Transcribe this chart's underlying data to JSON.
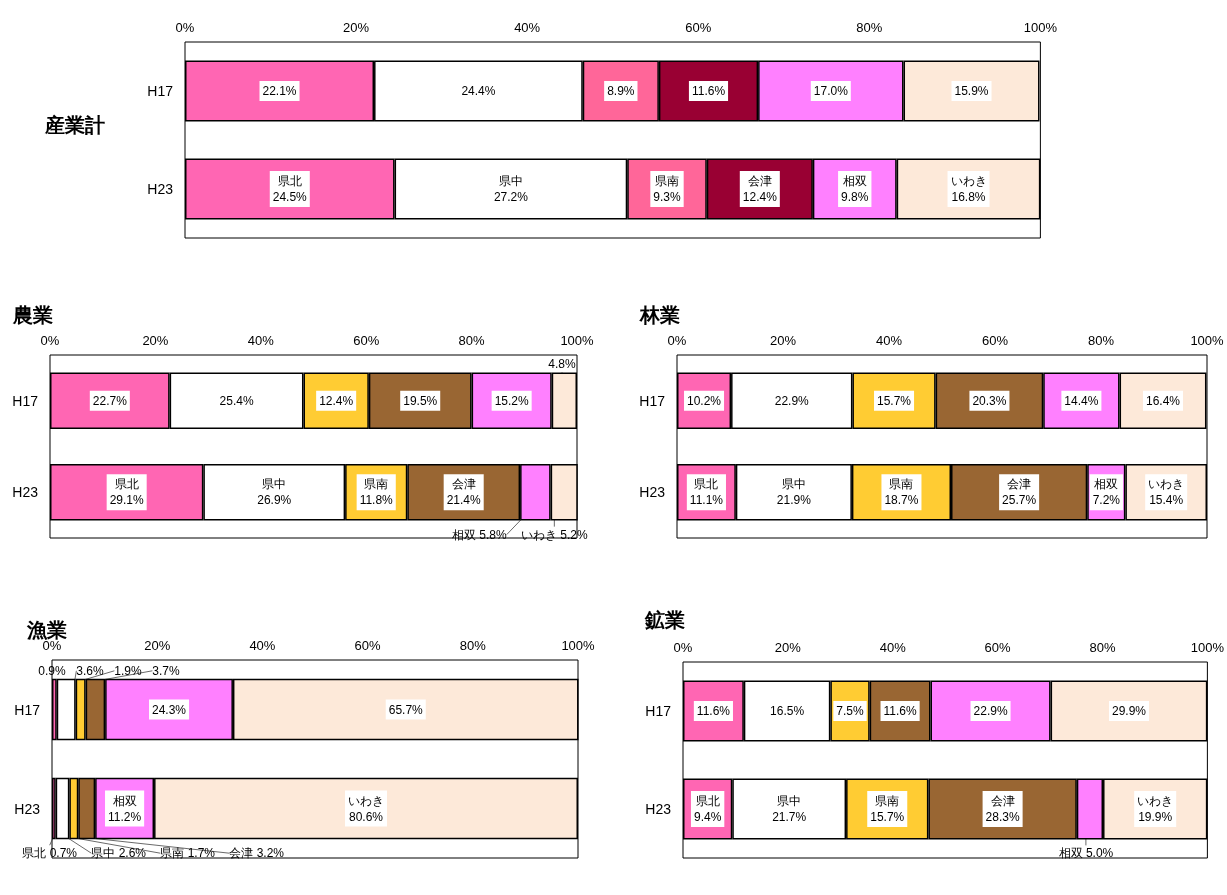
{
  "chart_data": [
    {
      "type": "bar",
      "title": "産業計",
      "orientation": "horizontal",
      "stacked": true,
      "categories": [
        "H17",
        "H23"
      ],
      "xlim": [
        0,
        100
      ],
      "xticks": [
        {
          "value": 0,
          "label": "0%"
        },
        {
          "value": 20,
          "label": "20%"
        },
        {
          "value": 40,
          "label": "40%"
        },
        {
          "value": 60,
          "label": "60%"
        },
        {
          "value": 80,
          "label": "80%"
        },
        {
          "value": 100,
          "label": "100%"
        }
      ],
      "series": [
        {
          "color": "#ff66b3",
          "values": [
            22.1,
            24.5
          ],
          "value_labels": [
            "22.1%",
            "県北 24.5%"
          ]
        },
        {
          "color": "#ffffff",
          "values": [
            24.4,
            27.2
          ],
          "value_labels": [
            "24.4%",
            "県中 27.2%"
          ]
        },
        {
          "color": "#ff6699",
          "values": [
            8.9,
            9.3
          ],
          "value_labels": [
            "8.9%",
            "県南 9.3%"
          ]
        },
        {
          "color": "#990033",
          "values": [
            11.6,
            12.4
          ],
          "value_labels": [
            "11.6%",
            "会津 12.4%"
          ]
        },
        {
          "color": "#ff80ff",
          "values": [
            17.0,
            9.8
          ],
          "value_labels": [
            "17.0%",
            "相双 9.8%"
          ]
        },
        {
          "color": "#fde9d9",
          "values": [
            15.9,
            16.8
          ],
          "value_labels": [
            "15.9%",
            "いわき 16.8%"
          ]
        }
      ]
    },
    {
      "type": "bar",
      "title": "農業",
      "orientation": "horizontal",
      "stacked": true,
      "categories": [
        "H17",
        "H23"
      ],
      "xlim": [
        0,
        100
      ],
      "xticks": [
        {
          "value": 0,
          "label": "0%"
        },
        {
          "value": 20,
          "label": "20%"
        },
        {
          "value": 40,
          "label": "40%"
        },
        {
          "value": 60,
          "label": "60%"
        },
        {
          "value": 80,
          "label": "80%"
        },
        {
          "value": 100,
          "label": "100%"
        }
      ],
      "series": [
        {
          "color": "#ff66b3",
          "values": [
            22.7,
            29.1
          ],
          "value_labels": [
            "22.7%",
            "県北 29.1%"
          ]
        },
        {
          "color": "#ffffff",
          "values": [
            25.4,
            26.9
          ],
          "value_labels": [
            "25.4%",
            "県中 26.9%"
          ]
        },
        {
          "color": "#ffcc33",
          "values": [
            12.4,
            11.8
          ],
          "value_labels": [
            "12.4%",
            "県南 11.8%"
          ]
        },
        {
          "color": "#996633",
          "values": [
            19.5,
            21.4
          ],
          "value_labels": [
            "19.5%",
            "会津 21.4%"
          ]
        },
        {
          "color": "#ff80ff",
          "values": [
            15.2,
            5.8
          ],
          "value_labels": [
            "15.2%",
            "相双 5.8%"
          ]
        },
        {
          "color": "#fde9d9",
          "values": [
            4.8,
            5.2
          ],
          "value_labels": [
            "4.8%",
            "いわき 5.2%"
          ]
        }
      ]
    },
    {
      "type": "bar",
      "title": "林業",
      "orientation": "horizontal",
      "stacked": true,
      "categories": [
        "H17",
        "H23"
      ],
      "xlim": [
        0,
        100
      ],
      "xticks": [
        {
          "value": 0,
          "label": "0%"
        },
        {
          "value": 20,
          "label": "20%"
        },
        {
          "value": 40,
          "label": "40%"
        },
        {
          "value": 60,
          "label": "60%"
        },
        {
          "value": 80,
          "label": "80%"
        },
        {
          "value": 100,
          "label": "100%"
        }
      ],
      "series": [
        {
          "color": "#ff66b3",
          "values": [
            10.2,
            11.1
          ],
          "value_labels": [
            "10.2%",
            "県北 11.1%"
          ]
        },
        {
          "color": "#ffffff",
          "values": [
            22.9,
            21.9
          ],
          "value_labels": [
            "22.9%",
            "県中 21.9%"
          ]
        },
        {
          "color": "#ffcc33",
          "values": [
            15.7,
            18.7
          ],
          "value_labels": [
            "15.7%",
            "県南 18.7%"
          ]
        },
        {
          "color": "#996633",
          "values": [
            20.3,
            25.7
          ],
          "value_labels": [
            "20.3%",
            "会津 25.7%"
          ]
        },
        {
          "color": "#ff80ff",
          "values": [
            14.4,
            7.2
          ],
          "value_labels": [
            "14.4%",
            "相双 7.2%"
          ]
        },
        {
          "color": "#fde9d9",
          "values": [
            16.4,
            15.4
          ],
          "value_labels": [
            "16.4%",
            "いわき 15.4%"
          ]
        }
      ]
    },
    {
      "type": "bar",
      "title": "漁業",
      "orientation": "horizontal",
      "stacked": true,
      "categories": [
        "H17",
        "H23"
      ],
      "xlim": [
        0,
        100
      ],
      "xticks": [
        {
          "value": 0,
          "label": "0%"
        },
        {
          "value": 20,
          "label": "20%"
        },
        {
          "value": 40,
          "label": "40%"
        },
        {
          "value": 60,
          "label": "60%"
        },
        {
          "value": 80,
          "label": "80%"
        },
        {
          "value": 100,
          "label": "100%"
        }
      ],
      "series": [
        {
          "color": "#ff66b3",
          "values": [
            0.9,
            0.7
          ],
          "value_labels": [
            "0.9%",
            "県北 0.7%"
          ]
        },
        {
          "color": "#ffffff",
          "values": [
            3.6,
            2.6
          ],
          "value_labels": [
            "3.6%",
            "県中 2.6%"
          ]
        },
        {
          "color": "#ffcc33",
          "values": [
            1.9,
            1.7
          ],
          "value_labels": [
            "1.9%",
            "県南 1.7%"
          ]
        },
        {
          "color": "#996633",
          "values": [
            3.7,
            3.2
          ],
          "value_labels": [
            "3.7%",
            "会津 3.2%"
          ]
        },
        {
          "color": "#ff80ff",
          "values": [
            24.3,
            11.2
          ],
          "value_labels": [
            "24.3%",
            "相双 11.2%"
          ]
        },
        {
          "color": "#fde9d9",
          "values": [
            65.7,
            80.6
          ],
          "value_labels": [
            "65.7%",
            "いわき 80.6%"
          ]
        }
      ]
    },
    {
      "type": "bar",
      "title": "鉱業",
      "orientation": "horizontal",
      "stacked": true,
      "categories": [
        "H17",
        "H23"
      ],
      "xlim": [
        0,
        100
      ],
      "xticks": [
        {
          "value": 0,
          "label": "0%"
        },
        {
          "value": 20,
          "label": "20%"
        },
        {
          "value": 40,
          "label": "40%"
        },
        {
          "value": 60,
          "label": "60%"
        },
        {
          "value": 80,
          "label": "80%"
        },
        {
          "value": 100,
          "label": "100%"
        }
      ],
      "series": [
        {
          "color": "#ff66b3",
          "values": [
            11.6,
            9.4
          ],
          "value_labels": [
            "11.6%",
            "県北 9.4%"
          ]
        },
        {
          "color": "#ffffff",
          "values": [
            16.5,
            21.7
          ],
          "value_labels": [
            "16.5%",
            "県中 21.7%"
          ]
        },
        {
          "color": "#ffcc33",
          "values": [
            7.5,
            15.7
          ],
          "value_labels": [
            "7.5%",
            "県南 15.7%"
          ]
        },
        {
          "color": "#996633",
          "values": [
            11.6,
            28.3
          ],
          "value_labels": [
            "11.6%",
            "会津 28.3%"
          ]
        },
        {
          "color": "#ff80ff",
          "values": [
            22.9,
            5.0
          ],
          "value_labels": [
            "22.9%",
            "相双 5.0%"
          ]
        },
        {
          "color": "#fde9d9",
          "values": [
            29.9,
            19.9
          ],
          "value_labels": [
            "29.9%",
            "いわき 19.9%"
          ]
        }
      ]
    }
  ]
}
